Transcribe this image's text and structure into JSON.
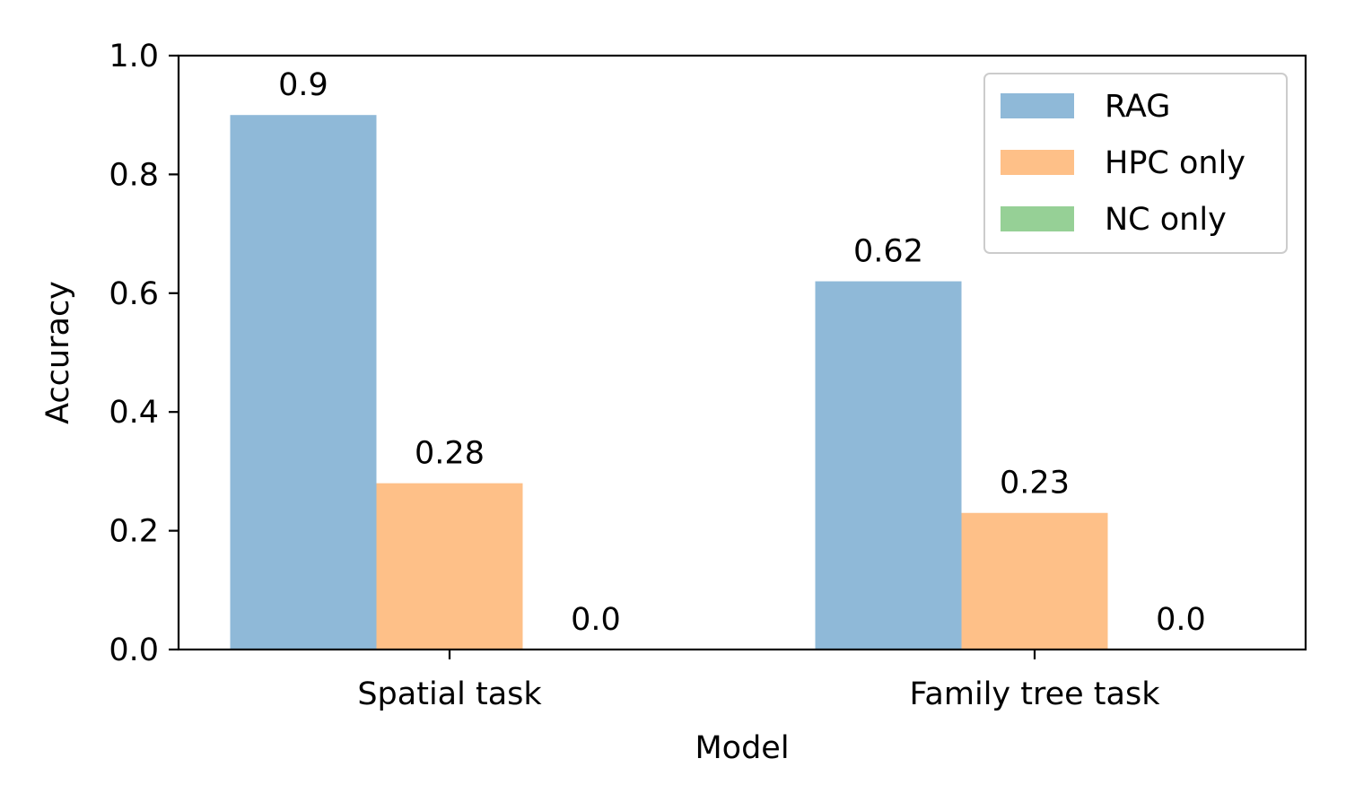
{
  "chart_data": {
    "type": "bar",
    "title": "",
    "xlabel": "Model",
    "ylabel": "Accuracy",
    "categories": [
      "Spatial task",
      "Family tree task"
    ],
    "series": [
      {
        "name": "RAG",
        "values": [
          0.9,
          0.62
        ],
        "labels": [
          "0.9",
          "0.62"
        ],
        "color": "#8fb9d8"
      },
      {
        "name": "HPC only",
        "values": [
          0.28,
          0.23
        ],
        "labels": [
          "0.28",
          "0.23"
        ],
        "color": "#fec088"
      },
      {
        "name": "NC only",
        "values": [
          0.0,
          0.0
        ],
        "labels": [
          "0.0",
          "0.0"
        ],
        "color": "#96d096"
      }
    ],
    "ylim": [
      0,
      1.0
    ],
    "yticks": [
      0.0,
      0.2,
      0.4,
      0.6,
      0.8,
      1.0
    ],
    "ytick_labels": [
      "0.0",
      "0.2",
      "0.4",
      "0.6",
      "0.8",
      "1.0"
    ],
    "grid": false,
    "legend_position": "top-right"
  }
}
